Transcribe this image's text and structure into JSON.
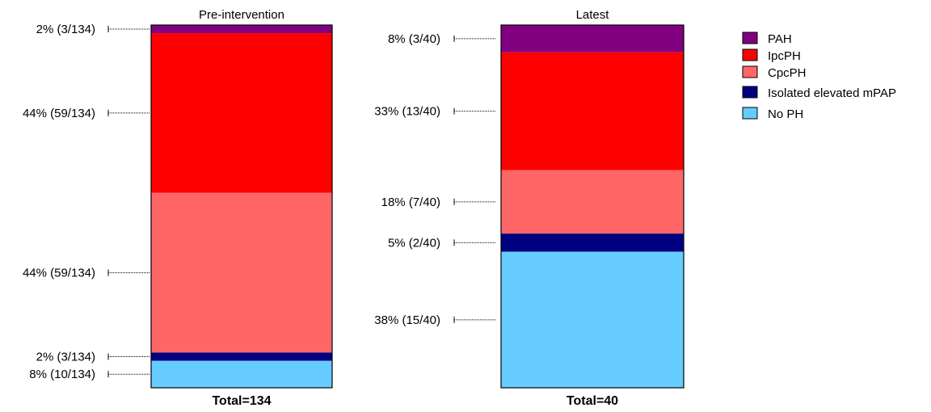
{
  "chart_data": {
    "type": "bar",
    "stacked": true,
    "normalized": true,
    "categories": [
      "PAH",
      "IpcPH",
      "CpcPH",
      "Isolated elevated mPAP",
      "No PH"
    ],
    "colors": {
      "PAH": "#800080",
      "IpcPH": "#ff0000",
      "CpcPH": "#ff6666",
      "Isolated elevated mPAP": "#000080",
      "No PH": "#66ccff"
    },
    "bars": [
      {
        "title": "Pre-intervention",
        "total_label": "Total=134",
        "segments": [
          {
            "category": "PAH",
            "count": 3,
            "total": 134,
            "label": "2% (3/134)"
          },
          {
            "category": "IpcPH",
            "count": 59,
            "total": 134,
            "label": "44% (59/134)"
          },
          {
            "category": "CpcPH",
            "count": 59,
            "total": 134,
            "label": "44% (59/134)"
          },
          {
            "category": "Isolated elevated mPAP",
            "count": 3,
            "total": 134,
            "label": "2% (3/134)"
          },
          {
            "category": "No PH",
            "count": 10,
            "total": 134,
            "label": "8% (10/134)"
          }
        ]
      },
      {
        "title": "Latest",
        "total_label": "Total=40",
        "segments": [
          {
            "category": "PAH",
            "count": 3,
            "total": 40,
            "label": "8% (3/40)"
          },
          {
            "category": "IpcPH",
            "count": 13,
            "total": 40,
            "label": "33% (13/40)"
          },
          {
            "category": "CpcPH",
            "count": 7,
            "total": 40,
            "label": "18% (7/40)"
          },
          {
            "category": "Isolated elevated mPAP",
            "count": 2,
            "total": 40,
            "label": "5% (2/40)"
          },
          {
            "category": "No PH",
            "count": 15,
            "total": 40,
            "label": "38% (15/40)"
          }
        ]
      }
    ],
    "legend": {
      "position": "top-right",
      "items": [
        "PAH",
        "IpcPH",
        "CpcPH",
        "Isolated elevated mPAP",
        "No PH"
      ]
    }
  }
}
